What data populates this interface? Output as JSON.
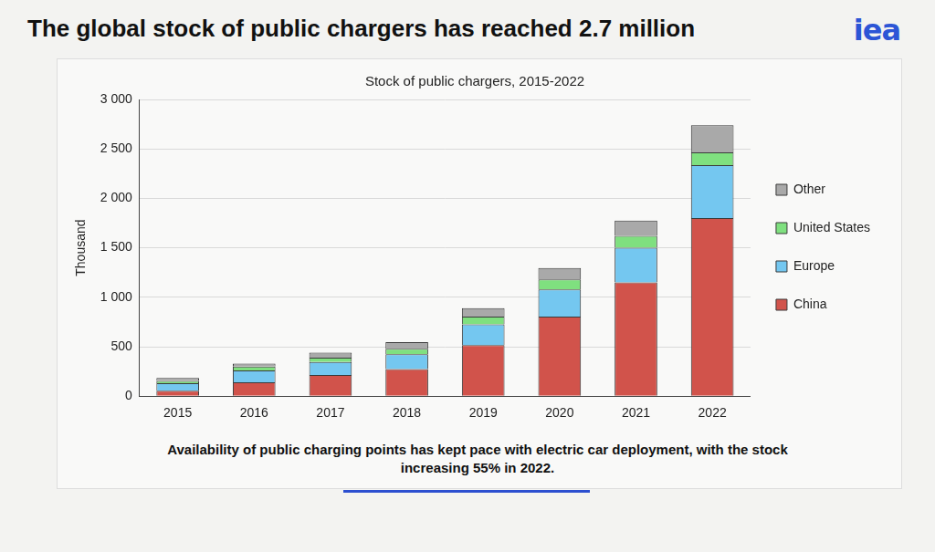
{
  "chart_data": {
    "type": "bar",
    "title": "The global stock of public chargers has reached 2.7 million",
    "logo": "iea",
    "subtitle": "Stock of public chargers, 2015-2022",
    "caption": "Availability of public charging points has kept pace with electric car deployment, with the stock increasing 55% in 2022.",
    "y_label": "Thousand",
    "categories": [
      "2015",
      "2016",
      "2017",
      "2018",
      "2019",
      "2020",
      "2021",
      "2022"
    ],
    "series": [
      {
        "name": "China",
        "color": "#d1534b",
        "values": [
          55,
          140,
          215,
          275,
          515,
          805,
          1150,
          1800
        ]
      },
      {
        "name": "Europe",
        "color": "#74c7f0",
        "values": [
          75,
          120,
          130,
          150,
          210,
          275,
          350,
          535
        ]
      },
      {
        "name": "United States",
        "color": "#7fe07f",
        "values": [
          25,
          40,
          45,
          55,
          80,
          100,
          120,
          130
        ]
      },
      {
        "name": "Other",
        "color": "#a9a9a9",
        "values": [
          30,
          30,
          50,
          65,
          85,
          115,
          155,
          275
        ]
      }
    ],
    "ylim": [
      0,
      3000
    ],
    "yticks": [
      0,
      500,
      {
        "value": 1000,
        "label": "1 000"
      },
      {
        "value": 1500,
        "label": "1 500"
      },
      {
        "value": 2000,
        "label": "2 000"
      },
      {
        "value": 2500,
        "label": "2 500"
      },
      {
        "value": 3000,
        "label": "3 000"
      }
    ],
    "stacked": true,
    "grid": true,
    "legend": "right"
  }
}
